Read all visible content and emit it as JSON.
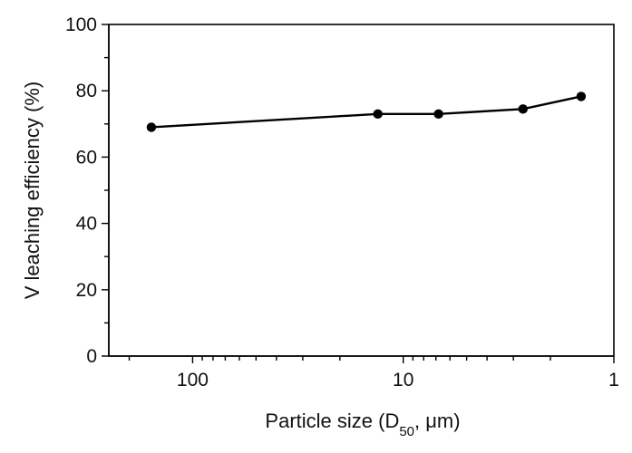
{
  "chart_data": {
    "type": "line",
    "title": "",
    "xlabel": {
      "prefix": "Particle size (D",
      "subscript": "50",
      "suffix": ", μm)"
    },
    "ylabel": "V leaching efficiency (%)",
    "xscale": "log",
    "xaxis_reversed": true,
    "xlim": [
      250,
      1
    ],
    "ylim": [
      0,
      100
    ],
    "xticks": [
      {
        "value": 100,
        "label": "100"
      },
      {
        "value": 10,
        "label": "10"
      },
      {
        "value": 1,
        "label": "1"
      }
    ],
    "yticks": [
      {
        "value": 0,
        "label": "0"
      },
      {
        "value": 20,
        "label": "20"
      },
      {
        "value": 40,
        "label": "40"
      },
      {
        "value": 60,
        "label": "60"
      },
      {
        "value": 80,
        "label": "80"
      },
      {
        "value": 100,
        "label": "100"
      }
    ],
    "grid": false,
    "series": [
      {
        "color": "#000000",
        "points": [
          {
            "x": 157,
            "y": 69
          },
          {
            "x": 13.2,
            "y": 73
          },
          {
            "x": 6.8,
            "y": 73
          },
          {
            "x": 2.7,
            "y": 74.5
          },
          {
            "x": 1.43,
            "y": 78.3
          }
        ]
      }
    ]
  }
}
